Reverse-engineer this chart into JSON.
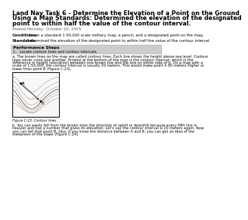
{
  "title": "Land Nav Task 6 - Determine the Elevation of a Point on the Ground Using a Map Standards: Determined the elevation of the designated point to within half the value of the contour interval.",
  "posted": "Posted Monday, October 10, 2005",
  "conditions_label": "Conditions:",
  "conditions_text": " Given a standard 1:50,000 scale military map, a pencil, and a designated point on the map.",
  "standards_label": "Standards:",
  "standards_text": " Determined the elevation of the designated point to within half the value of the contour interval.",
  "perf_header": "Performance Steps",
  "step1_line": "1.   Locate contour lines and contour intervals.",
  "step1a": "a. The brown lines on the map are called contour lines. Each line shows the height above sea level. Contour lines never cross one another. Printed at the bottom of the map is the contour interval, which is the difference in height (elevation) between one brown line and the one on either side of it. On a map with a scale of 1:50,000, the contour interval is usually 20 meters. This would make point A 80 meters higher or lower than point B (Figure C-23).",
  "figure_caption": "Figure C-23. Contour lines",
  "step1b": "b. You can easily tell from the brown lines the direction of uphill or downhill because every fifth line is heavier and has a number that gives its elevation. Let’s say the contour interval is 20 meters again. Now you can tell that point B. Also, if you know the distance between A and B, you can get an idea of the steepness of the slope (Figure C-24).",
  "bg_color": "#ffffff",
  "perf_bg": "#cccccc",
  "title_color": "#000000",
  "text_color": "#000000",
  "small_color": "#555555"
}
